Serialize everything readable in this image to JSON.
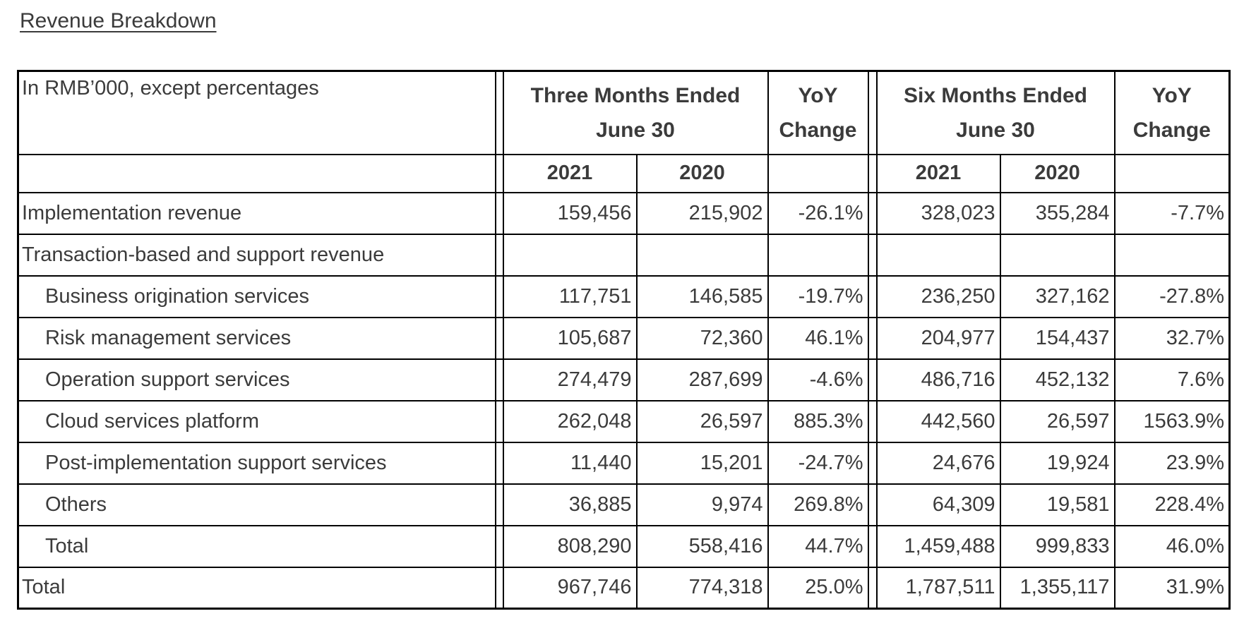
{
  "page": {
    "title": "Revenue Breakdown"
  },
  "table": {
    "corner_label": "In RMB’000, except percentages",
    "groups": {
      "three_months": {
        "line1": "Three Months Ended",
        "line2": "June 30"
      },
      "yoy1": {
        "line1": "YoY",
        "line2": "Change"
      },
      "six_months": {
        "line1": "Six Months Ended",
        "line2": "June 30"
      },
      "yoy2": {
        "line1": "YoY",
        "line2": "Change"
      }
    },
    "year_headers": {
      "q2021": "2021",
      "q2020": "2020",
      "h2021": "2021",
      "h2020": "2020"
    },
    "rows": [
      {
        "label": "Implementation revenue",
        "indent": false,
        "values": [
          "159,456",
          "215,902",
          "-26.1%",
          "328,023",
          "355,284",
          "-7.7%"
        ]
      },
      {
        "label": "Transaction-based and support revenue",
        "indent": false,
        "values": [
          "",
          "",
          "",
          "",
          "",
          ""
        ]
      },
      {
        "label": "Business origination services",
        "indent": true,
        "values": [
          "117,751",
          "146,585",
          "-19.7%",
          "236,250",
          "327,162",
          "-27.8%"
        ]
      },
      {
        "label": "Risk management services",
        "indent": true,
        "values": [
          "105,687",
          "72,360",
          "46.1%",
          "204,977",
          "154,437",
          "32.7%"
        ]
      },
      {
        "label": "Operation support services",
        "indent": true,
        "values": [
          "274,479",
          "287,699",
          "-4.6%",
          "486,716",
          "452,132",
          "7.6%"
        ]
      },
      {
        "label": "Cloud services platform",
        "indent": true,
        "values": [
          "262,048",
          "26,597",
          "885.3%",
          "442,560",
          "26,597",
          "1563.9%"
        ]
      },
      {
        "label": "Post-implementation support services",
        "indent": true,
        "values": [
          "11,440",
          "15,201",
          "-24.7%",
          "24,676",
          "19,924",
          "23.9%"
        ]
      },
      {
        "label": "Others",
        "indent": true,
        "values": [
          "36,885",
          "9,974",
          "269.8%",
          "64,309",
          "19,581",
          "228.4%"
        ]
      },
      {
        "label": "Total",
        "indent": true,
        "values": [
          "808,290",
          "558,416",
          "44.7%",
          "1,459,488",
          "999,833",
          "46.0%"
        ]
      },
      {
        "label": "Total",
        "indent": false,
        "values": [
          "967,746",
          "774,318",
          "25.0%",
          "1,787,511",
          "1,355,117",
          "31.9%"
        ]
      }
    ],
    "colors": {
      "border": "#000000",
      "text": "#3b3b3b",
      "background": "#ffffff"
    }
  }
}
